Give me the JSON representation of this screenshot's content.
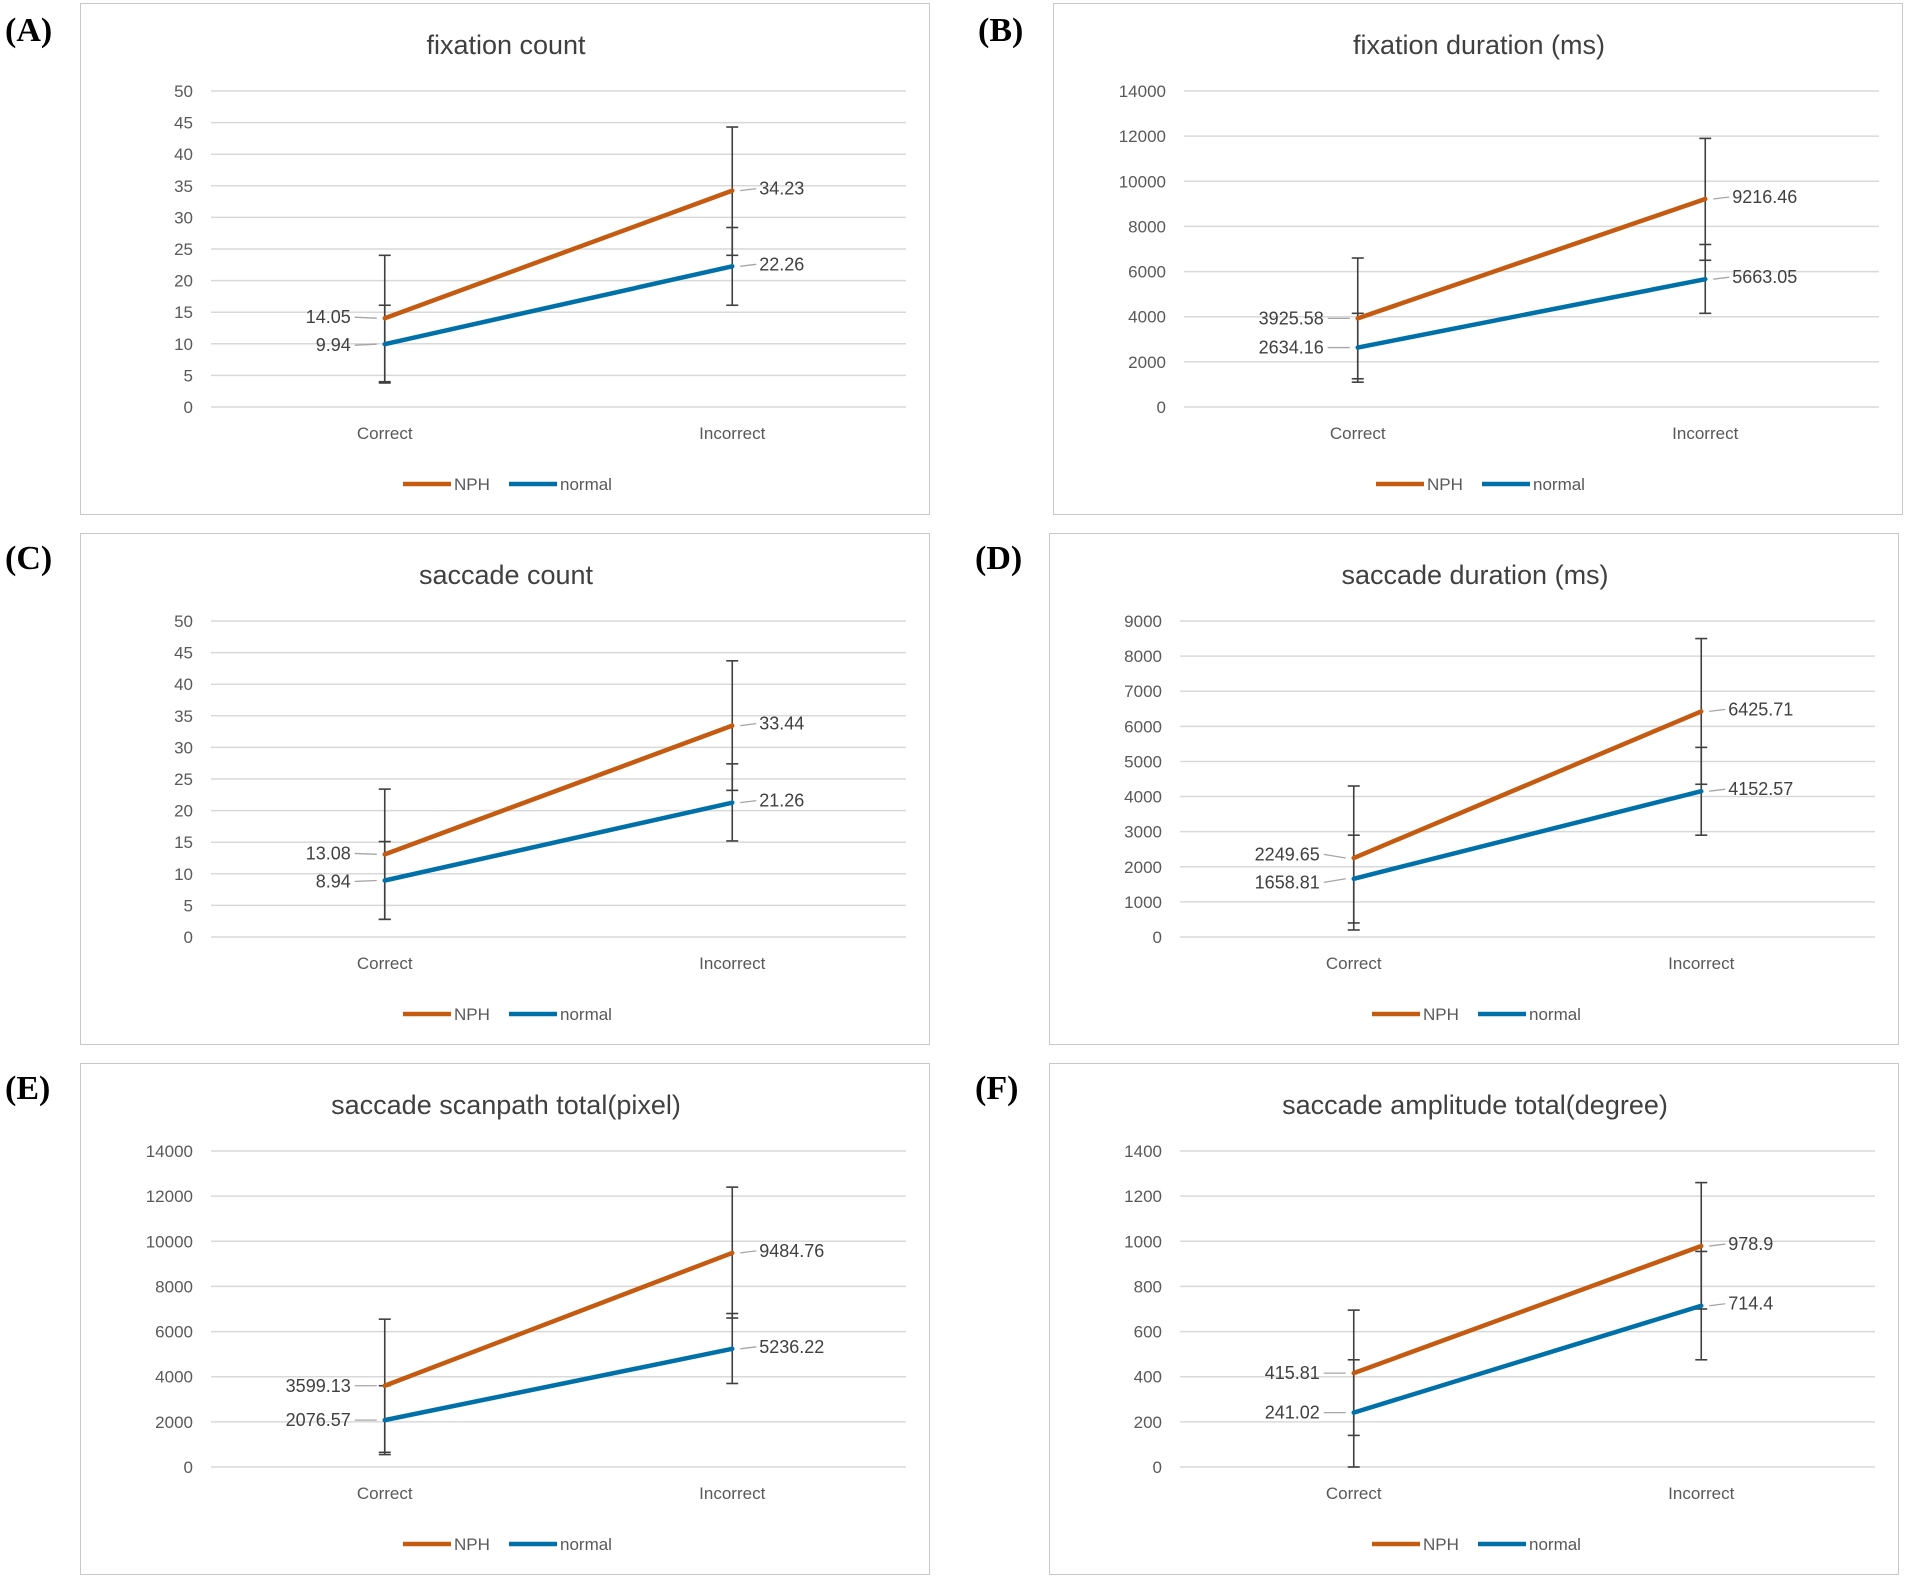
{
  "chart_data": [
    {
      "panel": "(A)",
      "type": "line",
      "title": "fixation count",
      "categories": [
        "Correct",
        "Incorrect"
      ],
      "ylim": [
        0,
        50
      ],
      "yticks": [
        0,
        5,
        10,
        15,
        20,
        25,
        30,
        35,
        40,
        45,
        50
      ],
      "series": [
        {
          "name": "NPH",
          "color": "#c55a11",
          "values": [
            14.05,
            34.23
          ],
          "error_low": [
            4,
            24
          ],
          "error_high": [
            24,
            44.3
          ]
        },
        {
          "name": "normal",
          "color": "#0070a8",
          "values": [
            9.94,
            22.26
          ],
          "error_low": [
            3.8,
            16.1
          ],
          "error_high": [
            16.1,
            28.4
          ]
        }
      ]
    },
    {
      "panel": "(B)",
      "type": "line",
      "title": "fixation duration (ms)",
      "categories": [
        "Correct",
        "Incorrect"
      ],
      "ylim": [
        0,
        14000
      ],
      "yticks": [
        0,
        2000,
        4000,
        6000,
        8000,
        10000,
        12000,
        14000
      ],
      "series": [
        {
          "name": "NPH",
          "color": "#c55a11",
          "values": [
            3925.58,
            9216.46
          ],
          "error_low": [
            1250,
            6500
          ],
          "error_high": [
            6600,
            11900
          ]
        },
        {
          "name": "normal",
          "color": "#0070a8",
          "values": [
            2634.16,
            5663.05
          ],
          "error_low": [
            1100,
            4150
          ],
          "error_high": [
            4150,
            7200
          ]
        }
      ]
    },
    {
      "panel": "(C)",
      "type": "line",
      "title": "saccade count",
      "categories": [
        "Correct",
        "Incorrect"
      ],
      "ylim": [
        0,
        50
      ],
      "yticks": [
        0,
        5,
        10,
        15,
        20,
        25,
        30,
        35,
        40,
        45,
        50
      ],
      "series": [
        {
          "name": "NPH",
          "color": "#c55a11",
          "values": [
            13.08,
            33.44
          ],
          "error_low": [
            2.8,
            23.2
          ],
          "error_high": [
            23.4,
            43.7
          ]
        },
        {
          "name": "normal",
          "color": "#0070a8",
          "values": [
            8.94,
            21.26
          ],
          "error_low": [
            2.8,
            15.2
          ],
          "error_high": [
            15.1,
            27.4
          ]
        }
      ]
    },
    {
      "panel": "(D)",
      "type": "line",
      "title": "saccade duration (ms)",
      "categories": [
        "Correct",
        "Incorrect"
      ],
      "ylim": [
        0,
        9000
      ],
      "yticks": [
        0,
        1000,
        2000,
        3000,
        4000,
        5000,
        6000,
        7000,
        8000,
        9000
      ],
      "series": [
        {
          "name": "NPH",
          "color": "#c55a11",
          "values": [
            2249.65,
            6425.71
          ],
          "error_low": [
            200,
            4350
          ],
          "error_high": [
            4300,
            8500
          ]
        },
        {
          "name": "normal",
          "color": "#0070a8",
          "values": [
            1658.81,
            4152.57
          ],
          "error_low": [
            400,
            2900
          ],
          "error_high": [
            2900,
            5400
          ]
        }
      ]
    },
    {
      "panel": "(E)",
      "type": "line",
      "title": "saccade scanpath total(pixel)",
      "categories": [
        "Correct",
        "Incorrect"
      ],
      "ylim": [
        0,
        14000
      ],
      "yticks": [
        0,
        2000,
        4000,
        6000,
        8000,
        10000,
        12000,
        14000
      ],
      "series": [
        {
          "name": "NPH",
          "color": "#c55a11",
          "values": [
            3599.13,
            9484.76
          ],
          "error_low": [
            650,
            6600
          ],
          "error_high": [
            6550,
            12400
          ]
        },
        {
          "name": "normal",
          "color": "#0070a8",
          "values": [
            2076.57,
            5236.22
          ],
          "error_low": [
            550,
            3700
          ],
          "error_high": [
            3600,
            6800
          ]
        }
      ]
    },
    {
      "panel": "(F)",
      "type": "line",
      "title": "saccade amplitude total(degree)",
      "categories": [
        "Correct",
        "Incorrect"
      ],
      "ylim": [
        0,
        1400
      ],
      "yticks": [
        0,
        200,
        400,
        600,
        800,
        1000,
        1200,
        1400
      ],
      "series": [
        {
          "name": "NPH",
          "color": "#c55a11",
          "values": [
            415.81,
            978.9
          ],
          "error_low": [
            140,
            700
          ],
          "error_high": [
            695,
            1260
          ]
        },
        {
          "name": "normal",
          "color": "#0070a8",
          "values": [
            241.02,
            714.4
          ],
          "error_low": [
            0,
            475
          ],
          "error_high": [
            475,
            955
          ]
        }
      ]
    }
  ]
}
